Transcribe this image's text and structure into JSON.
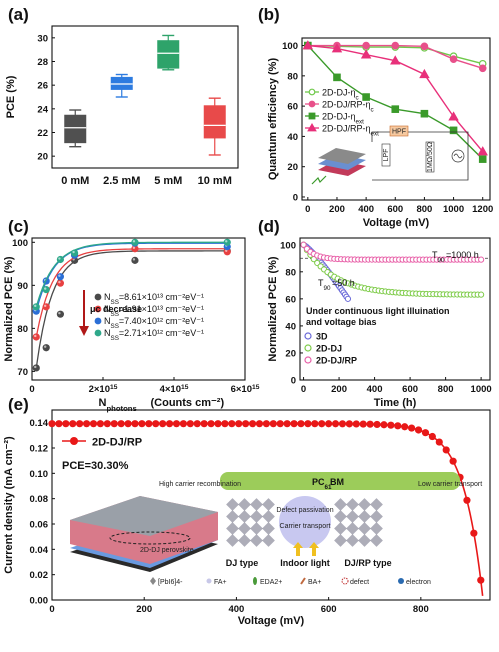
{
  "chart_data": [
    {
      "panel": "(a)",
      "type": "box",
      "ylabel": "PCE (%)",
      "ylim": [
        19,
        31
      ],
      "yticks": [
        20,
        22,
        24,
        26,
        28,
        30
      ],
      "categories": [
        "0 mM",
        "2.5 mM",
        "5 mM",
        "10 mM"
      ],
      "colors": [
        "#505050",
        "#2d7be0",
        "#2ea36a",
        "#e84a4a"
      ],
      "boxes": [
        {
          "min": 20.8,
          "q1": 21.1,
          "median": 22.4,
          "q3": 23.5,
          "max": 23.9
        },
        {
          "min": 25.0,
          "q1": 25.6,
          "median": 26.1,
          "q3": 26.7,
          "max": 26.9
        },
        {
          "min": 27.3,
          "q1": 27.4,
          "median": 28.7,
          "q3": 29.8,
          "max": 30.2
        },
        {
          "min": 20.1,
          "q1": 21.5,
          "median": 22.6,
          "q3": 24.3,
          "max": 24.9
        }
      ]
    },
    {
      "panel": "(b)",
      "type": "line",
      "xlabel": "Voltage (mV)",
      "ylabel": "Quantum efficiency (%)",
      "xlim": [
        0,
        1250
      ],
      "ylim": [
        0,
        105
      ],
      "xticks": [
        0,
        200,
        400,
        600,
        800,
        1000,
        1200
      ],
      "yticks": [
        0,
        20,
        40,
        60,
        80,
        100
      ],
      "x": [
        0,
        200,
        400,
        600,
        800,
        1000,
        1200
      ],
      "series": [
        {
          "name": "2D-DJ-ηc",
          "color": "#6fc84a",
          "marker": "circle",
          "hollow": true,
          "values": [
            100,
            99.5,
            99,
            99,
            98.5,
            93,
            88
          ]
        },
        {
          "name": "2D-DJ/RP-ηc",
          "color": "#e8508a",
          "marker": "circle",
          "hollow": false,
          "values": [
            100,
            100,
            100,
            100,
            99.5,
            91,
            85
          ]
        },
        {
          "name": "2D-DJ-ηext",
          "color": "#3a9a2a",
          "marker": "square",
          "hollow": false,
          "values": [
            100,
            79,
            66,
            58,
            55,
            44,
            25
          ]
        },
        {
          "name": "2D-DJ/RP-ηext",
          "color": "#e8307a",
          "marker": "triangle",
          "hollow": false,
          "values": [
            100,
            98,
            94,
            90,
            81,
            53,
            30
          ]
        }
      ],
      "inset_labels": [
        "HPF",
        "LPF",
        "1MΩ/50Ω"
      ]
    },
    {
      "panel": "(c)",
      "type": "scatter",
      "xlabel": "N_photons (Counts cm⁻²)",
      "ylabel": "Normalized PCE (%)",
      "xlim": [
        0,
        6000000000000000
      ],
      "ylim": [
        68,
        101
      ],
      "xtick_labels": [
        "0",
        "2x10¹⁵",
        "4x10¹⁵",
        "6x10¹⁵"
      ],
      "yticks": [
        70,
        80,
        90,
        100
      ],
      "annotation": "μc decrease",
      "series": [
        {
          "name": "N_SS=8.61×10¹³ cm⁻²eV⁻¹",
          "color": "#4a4a4a",
          "x": [
            0.12,
            0.4,
            0.8,
            1.2,
            2.9,
            5.5
          ],
          "y": [
            70.8,
            75.5,
            83.3,
            95.8,
            95.8,
            98.0
          ]
        },
        {
          "name": "N_SS=1.91×10¹³ cm⁻²eV⁻¹",
          "color": "#e84040",
          "x": [
            0.12,
            0.4,
            0.8,
            1.2,
            2.9,
            5.5
          ],
          "y": [
            78.0,
            85.0,
            90.5,
            97.0,
            98.5,
            97.8
          ]
        },
        {
          "name": "N_SS=7.40×10¹² cm⁻²eV⁻¹",
          "color": "#2b6fd6",
          "x": [
            0.12,
            0.4,
            0.8,
            1.2,
            2.9,
            5.5
          ],
          "y": [
            84.0,
            91.0,
            92.0,
            97.0,
            99.8,
            99.0
          ]
        },
        {
          "name": "N_SS=2.71×10¹² cm⁻²eV⁻¹",
          "color": "#2ea88a",
          "x": [
            0.12,
            0.4,
            0.8,
            1.2,
            2.9,
            5.5
          ],
          "y": [
            85.0,
            89.0,
            96.0,
            97.5,
            100.0,
            100.0
          ]
        }
      ]
    },
    {
      "panel": "(d)",
      "type": "scatter",
      "xlabel": "Time (h)",
      "ylabel": "Normalized PCE (%)",
      "xlim": [
        0,
        1050
      ],
      "ylim": [
        0,
        105
      ],
      "xticks": [
        0,
        200,
        400,
        600,
        800,
        1000
      ],
      "yticks": [
        0,
        20,
        40,
        60,
        80,
        100
      ],
      "legend_title": "Under continuous light illuination and voltage bias",
      "annotations": [
        "T90=1000 h",
        "T90=50 h"
      ],
      "series": [
        {
          "name": "3D",
          "color": "#6a6ad8",
          "end_x": 250,
          "end_y": 60
        },
        {
          "name": "2D-DJ",
          "color": "#7fcc4a",
          "end_x": 1000,
          "end_y": 63
        },
        {
          "name": "2D-DJ/RP",
          "color": "#e860a8",
          "end_x": 1000,
          "end_y": 89
        }
      ]
    },
    {
      "panel": "(e)",
      "type": "line",
      "xlabel": "Voltage (mV)",
      "ylabel": "Current density (mA cm⁻²)",
      "xlim": [
        0,
        950
      ],
      "ylim": [
        0,
        0.15
      ],
      "xticks": [
        0,
        200,
        400,
        600,
        800
      ],
      "yticks": [
        0.0,
        0.02,
        0.04,
        0.06,
        0.08,
        0.1,
        0.12,
        0.14
      ],
      "series": [
        {
          "name": "2D-DJ/RP",
          "color": "#e81818"
        }
      ],
      "pce_label": "PCE=30.30%",
      "inset_labels": [
        "PC61BM",
        "High carrier recombination",
        "Low carrier transport",
        "Defect passivation",
        "Carrier transport",
        "Indoor light",
        "DJ type",
        "DJ/RP type",
        "[PbI6]4-",
        "FA+",
        "EDA2+",
        "BA+",
        "defect",
        "electron",
        "2D-DJ perovskite"
      ]
    }
  ]
}
